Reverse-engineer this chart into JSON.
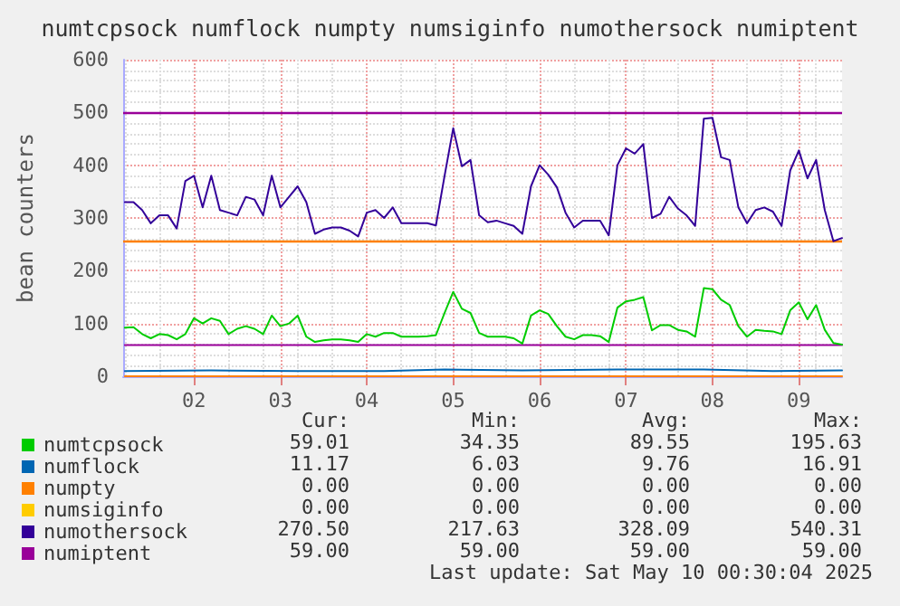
{
  "chart_data": {
    "type": "line",
    "title": "numtcpsock numflock numpty numsiginfo numothersock numiptent",
    "ylabel": "bean counters",
    "x": [
      1.2,
      1.3,
      1.4,
      1.5,
      1.6,
      1.7,
      1.8,
      1.9,
      2.0,
      2.1,
      2.2,
      2.3,
      2.4,
      2.5,
      2.6,
      2.7,
      2.8,
      2.9,
      3.0,
      3.1,
      3.2,
      3.3,
      3.4,
      3.5,
      3.6,
      3.7,
      3.8,
      3.9,
      4.0,
      4.1,
      4.2,
      4.3,
      4.4,
      4.5,
      4.6,
      4.7,
      4.8,
      4.9,
      5.0,
      5.1,
      5.2,
      5.3,
      5.4,
      5.5,
      5.6,
      5.7,
      5.8,
      5.9,
      6.0,
      6.1,
      6.2,
      6.3,
      6.4,
      6.5,
      6.6,
      6.7,
      6.8,
      6.9,
      7.0,
      7.1,
      7.2,
      7.3,
      7.4,
      7.5,
      7.6,
      7.7,
      7.8,
      7.9,
      8.0,
      8.1,
      8.2,
      8.3,
      8.4,
      8.5,
      8.6,
      8.7,
      8.8,
      8.9,
      9.0,
      9.1,
      9.2,
      9.3,
      9.4,
      9.5
    ],
    "series": [
      {
        "name": "numtcpsock",
        "color": "#00cc00",
        "values": [
          92,
          93,
          80,
          72,
          80,
          78,
          70,
          80,
          110,
          100,
          110,
          105,
          80,
          90,
          95,
          90,
          80,
          115,
          95,
          100,
          115,
          75,
          65,
          68,
          70,
          70,
          68,
          65,
          80,
          75,
          82,
          82,
          75,
          75,
          75,
          76,
          78,
          120,
          160,
          128,
          120,
          82,
          75,
          75,
          75,
          72,
          62,
          115,
          125,
          118,
          95,
          75,
          70,
          78,
          78,
          76,
          65,
          130,
          142,
          145,
          150,
          87,
          97,
          97,
          88,
          85,
          75,
          167,
          165,
          145,
          135,
          95,
          75,
          88,
          86,
          85,
          80,
          125,
          140,
          108,
          135,
          88,
          63,
          60
        ]
      },
      {
        "name": "numflock",
        "color": "#0066b3",
        "x": [
          1.2,
          2.2,
          3.2,
          4.2,
          4.9,
          5.8,
          6.9,
          7.9,
          8.7,
          9.5
        ],
        "values": [
          10,
          11,
          10,
          10,
          13,
          11,
          13,
          13,
          10,
          11
        ]
      },
      {
        "name": "numpty",
        "color": "#ff8000",
        "x": [
          1.2,
          9.5
        ],
        "values": [
          0,
          0
        ]
      },
      {
        "name": "numsiginfo",
        "color": "#ffcc00",
        "values": [
          null,
          null,
          null,
          null,
          null,
          null,
          null,
          null,
          null,
          null,
          null,
          null,
          null,
          null,
          null,
          null,
          null,
          null,
          null,
          null,
          null,
          null,
          null,
          null,
          null,
          null,
          null,
          null,
          null,
          null,
          null,
          null,
          null,
          null,
          null,
          null,
          null,
          null,
          null,
          null,
          null,
          null,
          null,
          null,
          null,
          null,
          null,
          null,
          null,
          null,
          null,
          null,
          null,
          null,
          null,
          null,
          null,
          null,
          null,
          null,
          null,
          null,
          null,
          null,
          null,
          null,
          null,
          null,
          null,
          null,
          null,
          null,
          null,
          null,
          null,
          null,
          null,
          null,
          null,
          null,
          null,
          null,
          null,
          null
        ]
      },
      {
        "name": "numothersock",
        "color": "#330099",
        "values": [
          330,
          330,
          315,
          290,
          305,
          305,
          280,
          370,
          380,
          320,
          380,
          315,
          310,
          305,
          340,
          335,
          305,
          380,
          320,
          340,
          360,
          330,
          270,
          278,
          282,
          282,
          276,
          265,
          310,
          315,
          300,
          320,
          290,
          290,
          290,
          290,
          286,
          380,
          470,
          398,
          410,
          305,
          292,
          295,
          290,
          285,
          270,
          360,
          400,
          382,
          358,
          310,
          282,
          295,
          295,
          295,
          267,
          400,
          432,
          422,
          440,
          300,
          308,
          340,
          318,
          305,
          285,
          488,
          490,
          415,
          410,
          320,
          290,
          315,
          320,
          312,
          285,
          390,
          428,
          375,
          410,
          315,
          256,
          262
        ]
      },
      {
        "name": "numiptent",
        "color": "#990099",
        "x": [
          1.2,
          9.5
        ],
        "values": [
          59,
          59
        ]
      }
    ],
    "xlim": [
      1.18,
      9.5
    ],
    "xticks": [
      {
        "value": 2,
        "label": "02"
      },
      {
        "value": 3,
        "label": "03"
      },
      {
        "value": 4,
        "label": "04"
      },
      {
        "value": 5,
        "label": "05"
      },
      {
        "value": 6,
        "label": "06"
      },
      {
        "value": 7,
        "label": "07"
      },
      {
        "value": 8,
        "label": "08"
      },
      {
        "value": 9,
        "label": "09"
      }
    ],
    "ylim": [
      0,
      600
    ],
    "yticks": [
      0,
      100,
      200,
      300,
      400,
      500,
      600
    ],
    "ref_lines": [
      {
        "axis": "y",
        "value": 500,
        "color": "#990099"
      },
      {
        "axis": "y",
        "value": 258,
        "color": "#ff8000"
      }
    ],
    "grid": true,
    "legend": "bottom left",
    "marker": "none",
    "line_style": "solid",
    "annotations": [
      "Cur:",
      "Min:",
      "Avg:",
      "Max:",
      "59.01",
      "34.35",
      "89.55",
      "195.63",
      "11.17",
      "6.03",
      "9.76",
      "16.91",
      "0.00",
      "0.00",
      "0.00",
      "0.00",
      "0.00",
      "0.00",
      "0.00",
      "0.00",
      "270.50",
      "217.63",
      "328.09",
      "540.31",
      "59.00",
      "59.00",
      "59.00",
      "59.00",
      "Last update: Sat May 10 00:30:04 2025"
    ]
  }
}
